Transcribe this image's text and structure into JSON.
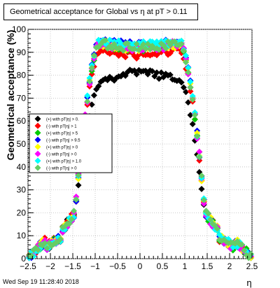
{
  "chart_data": {
    "type": "scatter",
    "title": "Geometrical acceptance for Global vs   η at pT > 0.11",
    "xlabel": "η",
    "ylabel": "Geometrical acceptance (%)",
    "xlim": [
      -2.5,
      2.5
    ],
    "ylim": [
      0,
      100
    ],
    "xticks": [
      -2.5,
      -2,
      -1.5,
      -1,
      -0.5,
      0,
      0.5,
      1,
      1.5,
      2,
      2.5
    ],
    "xtick_labels": [
      "−2.5",
      "−2",
      "−1.5",
      "−1",
      "−0.5",
      "0",
      "0.5",
      "1",
      "1.5",
      "2",
      "2.5"
    ],
    "yticks": [
      0,
      10,
      20,
      30,
      40,
      50,
      60,
      70,
      80,
      90,
      100
    ],
    "grid": true,
    "legend_position": "left-middle",
    "series": [
      {
        "name": "(+) with pT|η| > 0.",
        "color": "#000000",
        "plateau": 81
      },
      {
        "name": "(-) with pT|η| > 1",
        "color": "#ff0000",
        "plateau": 89
      },
      {
        "name": "(+) with pT|η| > 5",
        "color": "#00cc00",
        "plateau": 92
      },
      {
        "name": "(-) with pT|η| > 9.5",
        "color": "#0000ff",
        "plateau": 93
      },
      {
        "name": "(+) with pT|η| > 0",
        "color": "#ffff00",
        "plateau": 92
      },
      {
        "name": "(-) with pT|η| > 0",
        "color": "#ff00ff",
        "plateau": 92
      },
      {
        "name": "(+) with pT|η| > 1.0",
        "color": "#00ffff",
        "plateau": 93
      },
      {
        "name": "(-) with pT|η| > 0",
        "color": "#66cc66",
        "plateau": 92
      }
    ]
  },
  "footer_timestamp": "Wed Sep 19 11:28:40 2018"
}
